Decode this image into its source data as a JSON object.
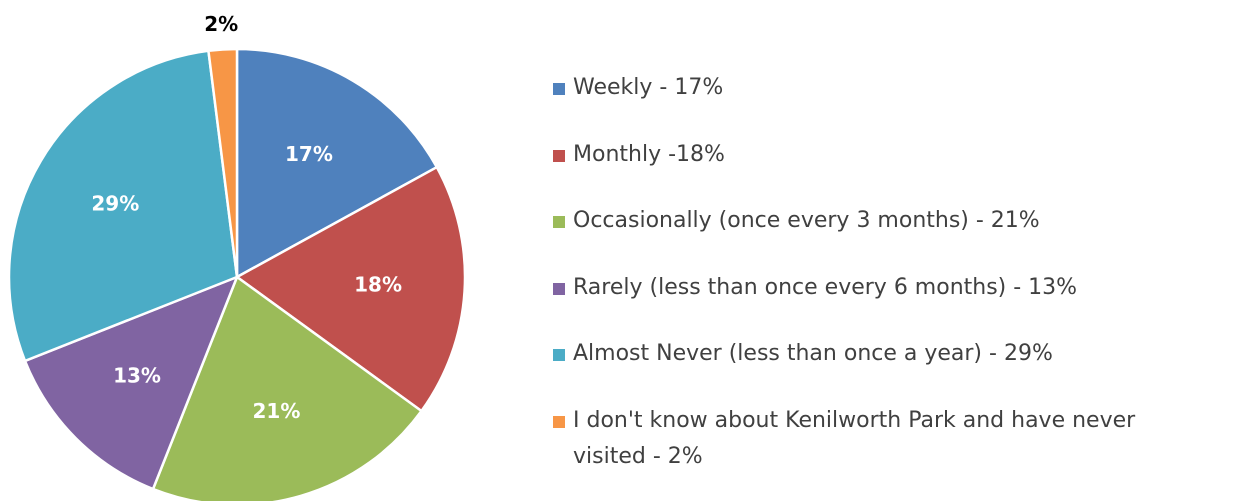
{
  "chart_data": {
    "type": "pie",
    "categories": [
      "Weekly - 17%",
      "Monthly -18%",
      "Occasionally (once every 3 months) - 21%",
      "Rarely (less than once every 6 months) - 13%",
      "Almost Never (less than once a year) - 29%",
      "I don't know about Kenilworth Park and have never visited  - 2%"
    ],
    "values": [
      17,
      18,
      21,
      13,
      29,
      2
    ],
    "value_labels": [
      "17%",
      "18%",
      "21%",
      "13%",
      "29%",
      "2%"
    ],
    "colors": [
      "#4f81bd",
      "#c0504d",
      "#9bbb59",
      "#8064a2",
      "#4bacc6",
      "#f79646"
    ],
    "legend": "right"
  }
}
